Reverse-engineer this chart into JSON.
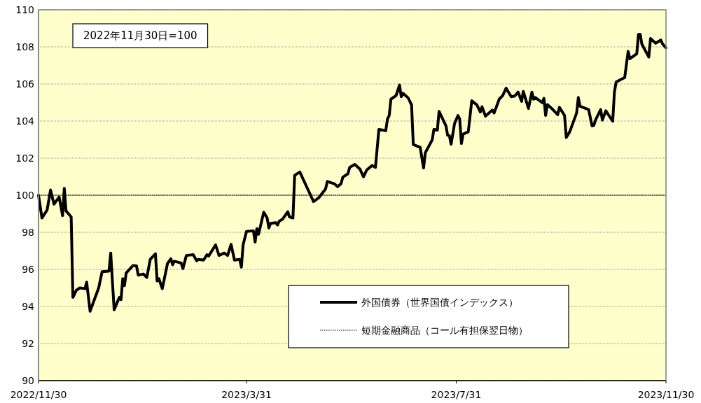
{
  "chart_data": {
    "type": "line",
    "xlim": [
      "2022-11-30",
      "2023-11-30"
    ],
    "xticks": [
      {
        "value": "2022-11-30",
        "label": "2022/11/30"
      },
      {
        "value": "2023-03-31",
        "label": "2023/3/31"
      },
      {
        "value": "2023-07-31",
        "label": "2023/7/31"
      },
      {
        "value": "2023-11-30",
        "label": "2023/11/30"
      }
    ],
    "ylim": [
      90,
      110
    ],
    "yticks": [
      90,
      92,
      94,
      96,
      98,
      100,
      102,
      104,
      106,
      108,
      110
    ],
    "grid": "y",
    "legend": "bottom right",
    "annotations": [
      "2022年11月30日=100"
    ],
    "series": [
      {
        "name": "外国債券（世界国債インデックス）",
        "color": "#000000",
        "line_style": "solid",
        "x": [
          "2022-11-30",
          "2022-12-02",
          "2022-12-05",
          "2022-12-07",
          "2022-12-09",
          "2022-12-12",
          "2022-12-14",
          "2022-12-15",
          "2022-12-16",
          "2022-12-19",
          "2022-12-20",
          "2022-12-22",
          "2022-12-24",
          "2022-12-27",
          "2022-12-28",
          "2022-12-30",
          "2023-01-04",
          "2023-01-06",
          "2023-01-10",
          "2023-01-11",
          "2023-01-13",
          "2023-01-16",
          "2023-01-17",
          "2023-01-18",
          "2023-01-19",
          "2023-01-20",
          "2023-01-24",
          "2023-01-26",
          "2023-01-27",
          "2023-01-30",
          "2023-02-01",
          "2023-02-03",
          "2023-02-06",
          "2023-02-07",
          "2023-02-08",
          "2023-02-10",
          "2023-02-13",
          "2023-02-15",
          "2023-02-16",
          "2023-02-17",
          "2023-02-21",
          "2023-02-22",
          "2023-02-24",
          "2023-02-28",
          "2023-03-02",
          "2023-03-03",
          "2023-03-06",
          "2023-03-08",
          "2023-03-09",
          "2023-03-13",
          "2023-03-15",
          "2023-03-18",
          "2023-03-20",
          "2023-03-22",
          "2023-03-24",
          "2023-03-27",
          "2023-03-28",
          "2023-03-29",
          "2023-03-31",
          "2023-04-04",
          "2023-04-05",
          "2023-04-06",
          "2023-04-07",
          "2023-04-10",
          "2023-04-12",
          "2023-04-13",
          "2023-04-14",
          "2023-04-17",
          "2023-04-18",
          "2023-04-19",
          "2023-04-21",
          "2023-04-24",
          "2023-04-25",
          "2023-04-27",
          "2023-04-28",
          "2023-05-01",
          "2023-05-09",
          "2023-05-12",
          "2023-05-16",
          "2023-05-17",
          "2023-05-21",
          "2023-05-23",
          "2023-05-25",
          "2023-05-26",
          "2023-05-29",
          "2023-05-30",
          "2023-06-02",
          "2023-06-05",
          "2023-06-07",
          "2023-06-09",
          "2023-06-12",
          "2023-06-14",
          "2023-06-16",
          "2023-06-20",
          "2023-06-21",
          "2023-06-22",
          "2023-06-23",
          "2023-06-26",
          "2023-06-28",
          "2023-06-29",
          "2023-06-30",
          "2023-07-03",
          "2023-07-05",
          "2023-07-06",
          "2023-07-10",
          "2023-07-12",
          "2023-07-13",
          "2023-07-17",
          "2023-07-18",
          "2023-07-20",
          "2023-07-21",
          "2023-07-25",
          "2023-07-26",
          "2023-07-27",
          "2023-07-28",
          "2023-07-30",
          "2023-08-01",
          "2023-08-02",
          "2023-08-03",
          "2023-08-04",
          "2023-08-07",
          "2023-08-09",
          "2023-08-12",
          "2023-08-14",
          "2023-08-15",
          "2023-08-17",
          "2023-08-21",
          "2023-08-22",
          "2023-08-25",
          "2023-08-27",
          "2023-08-29",
          "2023-09-01",
          "2023-09-03",
          "2023-09-05",
          "2023-09-07",
          "2023-09-08",
          "2023-09-11",
          "2023-09-13",
          "2023-09-14",
          "2023-09-15",
          "2023-09-19",
          "2023-09-20",
          "2023-09-21",
          "2023-09-22",
          "2023-09-25",
          "2023-09-28",
          "2023-09-29",
          "2023-10-02",
          "2023-10-03",
          "2023-10-05",
          "2023-10-09",
          "2023-10-10",
          "2023-10-11",
          "2023-10-16",
          "2023-10-18",
          "2023-10-19",
          "2023-10-20",
          "2023-10-23",
          "2023-10-24",
          "2023-10-26",
          "2023-10-30",
          "2023-10-31",
          "2023-11-01",
          "2023-11-06",
          "2023-11-08",
          "2023-11-09",
          "2023-11-13",
          "2023-11-14",
          "2023-11-15",
          "2023-11-16",
          "2023-11-20",
          "2023-11-21",
          "2023-11-24",
          "2023-11-27",
          "2023-11-28",
          "2023-11-30"
        ],
        "values": [
          100.0,
          98.77,
          99.2,
          100.28,
          99.52,
          99.9,
          98.9,
          100.37,
          99.15,
          98.83,
          94.49,
          94.87,
          95.0,
          94.96,
          95.31,
          93.74,
          95.0,
          95.88,
          95.91,
          96.88,
          93.82,
          94.49,
          94.37,
          95.5,
          95.12,
          95.81,
          96.21,
          96.19,
          95.69,
          95.75,
          95.56,
          96.54,
          96.84,
          95.37,
          95.5,
          94.96,
          96.31,
          96.57,
          96.25,
          96.44,
          96.34,
          96.04,
          96.75,
          96.79,
          96.46,
          96.54,
          96.5,
          96.79,
          96.72,
          97.32,
          96.75,
          96.88,
          96.75,
          97.35,
          96.5,
          96.54,
          96.12,
          97.32,
          98.05,
          98.08,
          97.47,
          98.2,
          97.89,
          99.08,
          98.77,
          98.23,
          98.48,
          98.52,
          98.39,
          98.6,
          98.71,
          99.11,
          98.83,
          98.77,
          101.07,
          101.25,
          99.65,
          99.86,
          100.34,
          100.74,
          100.62,
          100.46,
          100.62,
          100.97,
          101.16,
          101.5,
          101.66,
          101.41,
          100.99,
          101.37,
          101.6,
          101.5,
          103.55,
          103.48,
          104.11,
          104.3,
          105.18,
          105.37,
          105.94,
          105.31,
          105.5,
          105.25,
          104.87,
          102.73,
          102.58,
          101.47,
          102.29,
          102.98,
          103.55,
          103.51,
          104.52,
          103.74,
          103.23,
          103.21,
          102.75,
          103.86,
          104.3,
          104.11,
          102.79,
          103.3,
          103.42,
          105.09,
          104.87,
          104.49,
          104.77,
          104.26,
          104.59,
          104.43,
          105.18,
          105.37,
          105.77,
          105.31,
          105.35,
          105.56,
          105.06,
          105.6,
          104.68,
          105.56,
          105.18,
          105.27,
          104.99,
          105.22,
          104.3,
          104.89,
          104.64,
          104.34,
          104.74,
          104.3,
          103.11,
          103.42,
          104.43,
          105.27,
          104.8,
          104.62,
          103.74,
          103.76,
          104.05,
          104.62,
          104.05,
          104.55,
          103.99,
          105.56,
          106.1,
          106.35,
          107.76,
          107.36,
          107.63,
          108.67,
          108.68,
          108.14,
          107.45,
          108.45,
          108.2,
          108.37,
          108.16,
          107.95
        ]
      },
      {
        "name": "短期金融商品（コール有担保翌日物）",
        "color": "#000000",
        "line_style": "dotted",
        "x": [
          "2022-11-30",
          "2023-11-30"
        ],
        "values": [
          100,
          100
        ]
      }
    ]
  }
}
